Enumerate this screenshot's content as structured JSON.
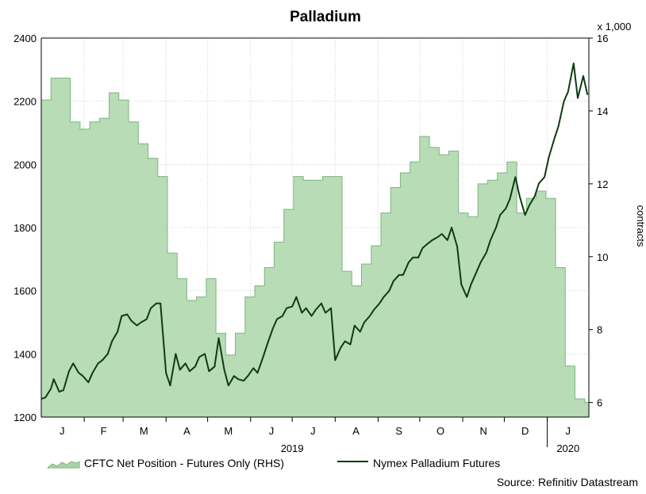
{
  "chart_data": {
    "type": "line+area",
    "title": "Palladium",
    "left_axis": {
      "min": 1200,
      "max": 2400,
      "ticks": [
        1200,
        1400,
        1600,
        1800,
        2000,
        2200,
        2400
      ]
    },
    "right_axis": {
      "min": 5.6,
      "max": 16,
      "ticks": [
        6,
        8,
        10,
        12,
        14,
        16
      ],
      "multiplier_label": "x 1,000",
      "label": "contracts"
    },
    "x_axis": {
      "start": "2019-01-01",
      "end": "2020-01-31",
      "months": [
        {
          "label": "J",
          "date": "2019-01-16"
        },
        {
          "label": "F",
          "date": "2019-02-15"
        },
        {
          "label": "M",
          "date": "2019-03-16"
        },
        {
          "label": "A",
          "date": "2019-04-16"
        },
        {
          "label": "M",
          "date": "2019-05-16"
        },
        {
          "label": "J",
          "date": "2019-06-16"
        },
        {
          "label": "J",
          "date": "2019-07-16"
        },
        {
          "label": "A",
          "date": "2019-08-16"
        },
        {
          "label": "S",
          "date": "2019-09-16"
        },
        {
          "label": "O",
          "date": "2019-10-16"
        },
        {
          "label": "N",
          "date": "2019-11-16"
        },
        {
          "label": "D",
          "date": "2019-12-16"
        },
        {
          "label": "J",
          "date": "2020-01-16"
        }
      ],
      "years": [
        {
          "label": "2019",
          "date": "2019-07-01"
        },
        {
          "label": "2020",
          "date": "2020-01-16"
        }
      ]
    },
    "series": [
      {
        "name": "CFTC Net Position - Futures Only (RHS)",
        "axis": "right",
        "style": "area",
        "x": [
          "2019-01-01",
          "2019-01-08",
          "2019-01-15",
          "2019-01-22",
          "2019-01-29",
          "2019-02-05",
          "2019-02-12",
          "2019-02-19",
          "2019-02-26",
          "2019-03-05",
          "2019-03-12",
          "2019-03-19",
          "2019-03-26",
          "2019-04-02",
          "2019-04-09",
          "2019-04-16",
          "2019-04-23",
          "2019-04-30",
          "2019-05-07",
          "2019-05-14",
          "2019-05-21",
          "2019-05-28",
          "2019-06-04",
          "2019-06-11",
          "2019-06-18",
          "2019-06-25",
          "2019-07-02",
          "2019-07-09",
          "2019-07-16",
          "2019-07-23",
          "2019-07-30",
          "2019-08-06",
          "2019-08-13",
          "2019-08-20",
          "2019-08-27",
          "2019-09-03",
          "2019-09-10",
          "2019-09-17",
          "2019-09-24",
          "2019-10-01",
          "2019-10-08",
          "2019-10-15",
          "2019-10-22",
          "2019-10-29",
          "2019-11-05",
          "2019-11-12",
          "2019-11-19",
          "2019-11-26",
          "2019-12-03",
          "2019-12-10",
          "2019-12-17",
          "2019-12-24",
          "2019-12-31",
          "2020-01-07",
          "2020-01-14",
          "2020-01-21",
          "2020-01-28"
        ],
        "values": [
          14.3,
          14.9,
          14.9,
          13.7,
          13.5,
          13.7,
          13.8,
          14.5,
          14.3,
          13.7,
          13.1,
          12.7,
          12.2,
          10.1,
          9.4,
          8.8,
          8.9,
          9.4,
          7.9,
          7.3,
          7.9,
          8.9,
          9.2,
          9.7,
          10.4,
          11.3,
          12.2,
          12.1,
          12.1,
          12.2,
          12.2,
          9.6,
          9.2,
          9.8,
          10.3,
          11.2,
          11.9,
          12.3,
          12.6,
          13.3,
          13.0,
          12.8,
          12.9,
          11.2,
          11.1,
          12.0,
          12.1,
          12.3,
          12.6,
          11.2,
          11.6,
          11.8,
          11.6,
          9.7,
          7.0,
          6.1,
          6.0
        ]
      },
      {
        "name": "Nymex Palladium Futures",
        "axis": "left",
        "style": "line",
        "x": [
          "2019-01-01",
          "2019-01-04",
          "2019-01-08",
          "2019-01-10",
          "2019-01-14",
          "2019-01-17",
          "2019-01-21",
          "2019-01-24",
          "2019-01-28",
          "2019-01-31",
          "2019-02-04",
          "2019-02-07",
          "2019-02-11",
          "2019-02-14",
          "2019-02-18",
          "2019-02-21",
          "2019-02-25",
          "2019-02-28",
          "2019-03-04",
          "2019-03-07",
          "2019-03-11",
          "2019-03-14",
          "2019-03-18",
          "2019-03-21",
          "2019-03-25",
          "2019-03-28",
          "2019-04-01",
          "2019-04-04",
          "2019-04-08",
          "2019-04-11",
          "2019-04-15",
          "2019-04-18",
          "2019-04-22",
          "2019-04-25",
          "2019-04-29",
          "2019-05-02",
          "2019-05-06",
          "2019-05-09",
          "2019-05-13",
          "2019-05-16",
          "2019-05-20",
          "2019-05-23",
          "2019-05-27",
          "2019-05-30",
          "2019-06-03",
          "2019-06-06",
          "2019-06-10",
          "2019-06-13",
          "2019-06-17",
          "2019-06-20",
          "2019-06-24",
          "2019-06-27",
          "2019-07-01",
          "2019-07-04",
          "2019-07-08",
          "2019-07-11",
          "2019-07-15",
          "2019-07-18",
          "2019-07-22",
          "2019-07-25",
          "2019-07-29",
          "2019-08-01",
          "2019-08-05",
          "2019-08-08",
          "2019-08-12",
          "2019-08-15",
          "2019-08-19",
          "2019-08-22",
          "2019-08-26",
          "2019-08-29",
          "2019-09-02",
          "2019-09-05",
          "2019-09-09",
          "2019-09-12",
          "2019-09-16",
          "2019-09-19",
          "2019-09-23",
          "2019-09-26",
          "2019-09-30",
          "2019-10-03",
          "2019-10-07",
          "2019-10-10",
          "2019-10-14",
          "2019-10-17",
          "2019-10-21",
          "2019-10-24",
          "2019-10-28",
          "2019-10-31",
          "2019-11-04",
          "2019-11-07",
          "2019-11-11",
          "2019-11-14",
          "2019-11-18",
          "2019-11-21",
          "2019-11-25",
          "2019-11-28",
          "2019-12-02",
          "2019-12-05",
          "2019-12-09",
          "2019-12-12",
          "2019-12-16",
          "2019-12-19",
          "2019-12-23",
          "2019-12-26",
          "2019-12-30",
          "2020-01-02",
          "2020-01-06",
          "2020-01-09",
          "2020-01-13",
          "2020-01-16",
          "2020-01-20",
          "2020-01-23",
          "2020-01-27",
          "2020-01-30"
        ],
        "values": [
          1258,
          1262,
          1290,
          1320,
          1280,
          1285,
          1345,
          1370,
          1340,
          1330,
          1310,
          1340,
          1370,
          1380,
          1400,
          1440,
          1470,
          1520,
          1525,
          1505,
          1490,
          1500,
          1510,
          1545,
          1560,
          1560,
          1340,
          1300,
          1400,
          1350,
          1370,
          1345,
          1360,
          1390,
          1400,
          1345,
          1360,
          1450,
          1350,
          1300,
          1330,
          1320,
          1315,
          1330,
          1355,
          1340,
          1390,
          1430,
          1480,
          1510,
          1520,
          1545,
          1550,
          1580,
          1530,
          1545,
          1520,
          1540,
          1560,
          1530,
          1545,
          1380,
          1420,
          1440,
          1430,
          1490,
          1470,
          1500,
          1520,
          1540,
          1560,
          1580,
          1600,
          1630,
          1650,
          1650,
          1690,
          1705,
          1705,
          1735,
          1750,
          1760,
          1770,
          1780,
          1760,
          1800,
          1740,
          1620,
          1580,
          1620,
          1660,
          1690,
          1720,
          1760,
          1800,
          1840,
          1860,
          1890,
          1960,
          1900,
          1840,
          1870,
          1900,
          1940,
          1960,
          2020,
          2080,
          2120,
          2200,
          2230,
          2320,
          2210,
          2280,
          2220
        ]
      }
    ],
    "legend": {
      "placement": "bottom-left",
      "items": [
        {
          "label": "CFTC Net Position - Futures Only (RHS)",
          "color": "#a8d4a8",
          "type": "area"
        },
        {
          "label": "Nymex Palladium Futures",
          "color": "#0e3b12",
          "type": "line"
        }
      ]
    },
    "source": "Source: Refinitiv Datastream",
    "colors": {
      "area_fill": "#b7dcb6",
      "area_edge": "#7fb580",
      "line": "#0e3b12",
      "grid": "#cfcfcf"
    },
    "grid": true
  }
}
